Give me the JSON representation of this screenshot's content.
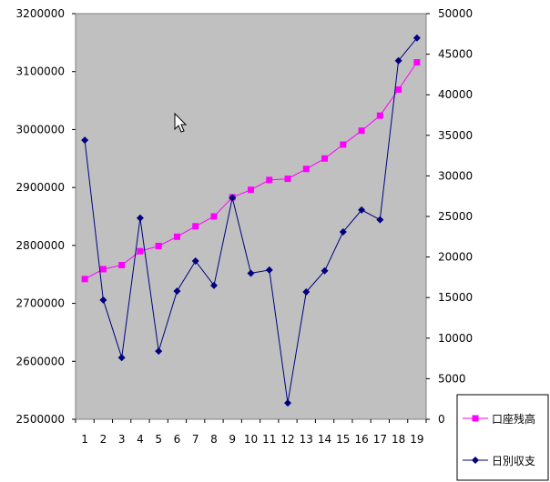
{
  "chart_data": {
    "type": "line",
    "x": [
      1,
      2,
      3,
      4,
      5,
      6,
      7,
      8,
      9,
      10,
      11,
      12,
      13,
      14,
      15,
      16,
      17,
      18,
      19
    ],
    "x_tick_labels": [
      "1",
      "2",
      "3",
      "4",
      "5",
      "6",
      "7",
      "8",
      "9",
      "10",
      "11",
      "12",
      "13",
      "14",
      "15",
      "16",
      "17",
      "18",
      "19"
    ],
    "y_left": {
      "range": [
        2500000,
        3200000
      ],
      "tick_labels": [
        "2500000",
        "2600000",
        "2700000",
        "2800000",
        "2900000",
        "3000000",
        "3100000",
        "3200000"
      ]
    },
    "y_right": {
      "range": [
        0,
        50000
      ],
      "tick_labels": [
        "0",
        "5000",
        "10000",
        "15000",
        "20000",
        "25000",
        "30000",
        "35000",
        "40000",
        "45000",
        "50000"
      ]
    },
    "grid": false,
    "plot_background": "#c0c0c0",
    "legend_position": "bottom-right",
    "series": [
      {
        "name": "口座残高",
        "axis": "left",
        "color": "#ff00ff",
        "marker": "square",
        "values": [
          2742000,
          2759000,
          2766000,
          2790000,
          2799000,
          2815000,
          2833000,
          2850000,
          2883000,
          2896000,
          2913000,
          2915000,
          2932000,
          2950000,
          2974000,
          2998000,
          3024000,
          3069000,
          3116000
        ]
      },
      {
        "name": "日別収支",
        "axis": "right",
        "color": "#000080",
        "marker": "diamond",
        "values": [
          34400,
          14700,
          7600,
          24800,
          8400,
          15800,
          19500,
          16500,
          27300,
          18000,
          18400,
          2000,
          15700,
          18300,
          23100,
          25800,
          24600,
          44200,
          47000
        ]
      }
    ]
  }
}
